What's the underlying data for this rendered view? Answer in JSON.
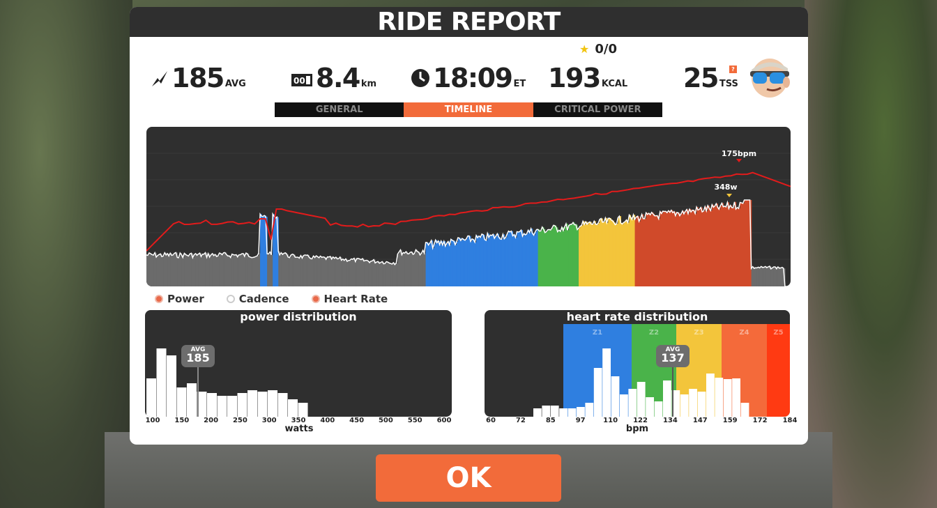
{
  "dialog": {
    "title": "RIDE REPORT"
  },
  "stars": {
    "text": "0/0"
  },
  "stats": {
    "power": {
      "value": "185",
      "unit": "AVG"
    },
    "distance": {
      "value": "8.4",
      "unit": "km"
    },
    "time": {
      "value": "18:09",
      "unit": "ET"
    },
    "calories": {
      "value": "193",
      "unit": "KCAL"
    },
    "tss": {
      "value": "25",
      "unit": "TSS",
      "info": "?"
    }
  },
  "tabs": [
    {
      "label": "GENERAL",
      "active": false
    },
    {
      "label": "TIMELINE",
      "active": true
    },
    {
      "label": "CRITICAL POWER",
      "active": false
    }
  ],
  "timeline": {
    "max_hr_label": "175bpm",
    "max_power_label": "348w"
  },
  "legend": [
    {
      "label": "Power",
      "on": true
    },
    {
      "label": "Cadence",
      "on": false
    },
    {
      "label": "Heart Rate",
      "on": true
    }
  ],
  "power_distribution": {
    "title": "power distribution",
    "avg_label": "AVG",
    "avg_value": "185",
    "x_ticks": [
      "100",
      "150",
      "200",
      "250",
      "300",
      "350",
      "400",
      "450",
      "500",
      "550",
      "600"
    ],
    "xlabel": "watts"
  },
  "hr_distribution": {
    "title": "heart rate distribution",
    "avg_label": "AVG",
    "avg_value": "137",
    "zones": [
      "Z1",
      "Z2",
      "Z3",
      "Z4",
      "Z5"
    ],
    "x_ticks": [
      "60",
      "72",
      "85",
      "97",
      "110",
      "122",
      "134",
      "147",
      "159",
      "172",
      "184"
    ],
    "xlabel": "bpm"
  },
  "ok_button": {
    "label": "OK"
  },
  "colors": {
    "accent": "#f26b3a",
    "hr_line": "#e31b1b",
    "z1": "#2f7fe0",
    "z2": "#4ab34a",
    "z3": "#f3c53b",
    "z4": "#f46a3a",
    "z5": "#ff3a12"
  }
}
